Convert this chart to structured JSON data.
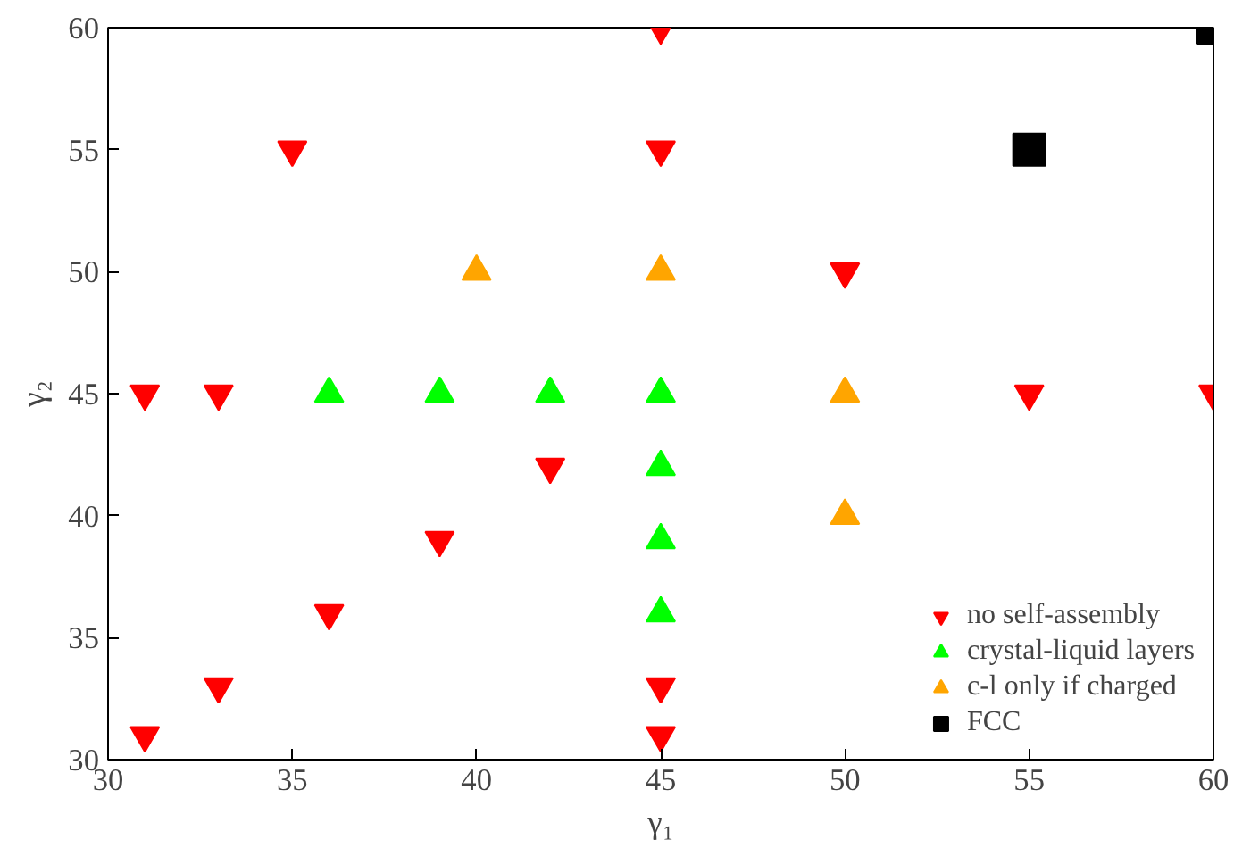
{
  "chart_data": {
    "type": "scatter",
    "xlabel": "γ₁",
    "ylabel": "γ₂",
    "xlim": [
      30,
      60
    ],
    "ylim": [
      30,
      60
    ],
    "xticks": [
      30,
      35,
      40,
      45,
      50,
      55,
      60
    ],
    "yticks": [
      30,
      35,
      40,
      45,
      50,
      55,
      60
    ],
    "grid": false,
    "legend": "bottom right",
    "series": [
      {
        "name": "no self-assembly",
        "color": "#ff0000",
        "x": [
          31,
          33,
          36,
          39,
          42,
          31,
          33,
          35,
          45,
          45,
          45,
          45,
          50,
          55,
          60
        ],
        "values": [
          31,
          33,
          36,
          39,
          42,
          45,
          45,
          55,
          60,
          55,
          33,
          31,
          50,
          45,
          45
        ]
      },
      {
        "name": "crystal-liquid layers",
        "color": "#00ff00",
        "marker": "triangle",
        "x": [
          36,
          39,
          42,
          45,
          45,
          45,
          45
        ],
        "values": [
          45,
          45,
          45,
          45,
          42,
          39,
          36
        ]
      },
      {
        "name": "c-l only if charged",
        "color": "#ffa500",
        "marker": "triangle",
        "x": [
          40,
          45,
          50,
          50
        ],
        "values": [
          50,
          50,
          45,
          40
        ]
      },
      {
        "name": "FCC",
        "color": "#000000",
        "marker": "square",
        "x": [
          55,
          60
        ],
        "values": [
          55,
          60
        ]
      }
    ]
  }
}
